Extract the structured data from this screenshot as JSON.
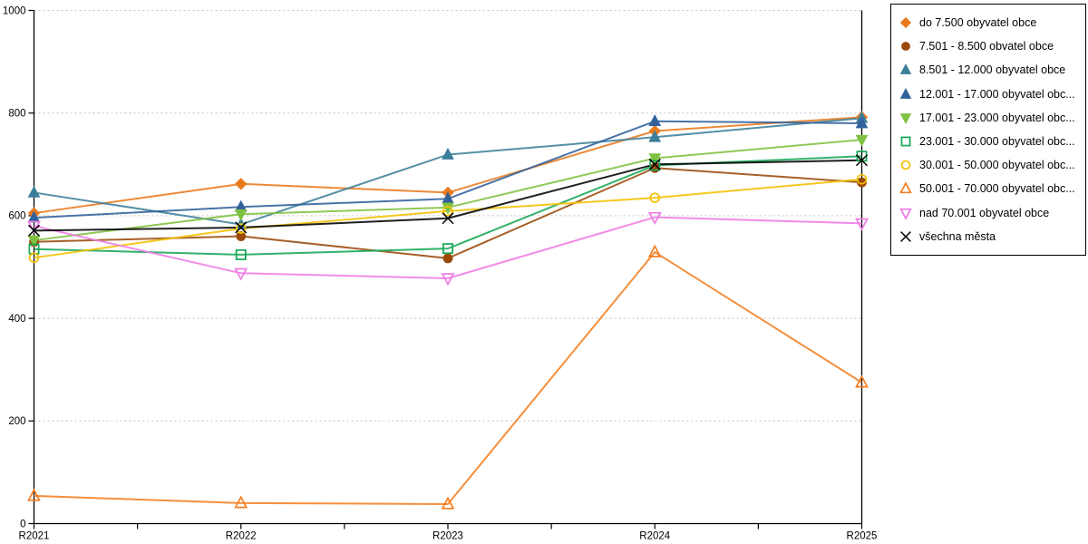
{
  "chart_data": {
    "type": "line",
    "title": "",
    "xlabel": "",
    "ylabel": "",
    "categories": [
      "R2021",
      "R2022",
      "R2023",
      "R2024",
      "R2025"
    ],
    "ylim": [
      0,
      1000
    ],
    "yticks": [
      0,
      200,
      400,
      600,
      800,
      1000
    ],
    "grid": "horizontal-dashed",
    "grid_color": "#c3c3c3",
    "axis_color": "#000000",
    "legend_position": "right",
    "series": [
      {
        "name": "do 7.500 obyvatel obce",
        "color": "#E87A1E",
        "marker": "diamond",
        "filled": true,
        "values": [
          605,
          662,
          645,
          765,
          792
        ]
      },
      {
        "name": "7.501 - 8.500 obvatel obce",
        "color": "#9B4A0B",
        "marker": "circle",
        "filled": true,
        "values": [
          549,
          560,
          517,
          693,
          665
        ]
      },
      {
        "name": "8.501 - 12.000 obyvatel obce",
        "color": "#3C7F9B",
        "marker": "triangle-up",
        "filled": true,
        "values": [
          645,
          583,
          719,
          753,
          790
        ]
      },
      {
        "name": "12.001 - 17.000 obyvatel obc...",
        "color": "#31609B",
        "marker": "triangle-up",
        "filled": true,
        "values": [
          596,
          617,
          633,
          784,
          780
        ]
      },
      {
        "name": "17.001 - 23.000 obyvatel obc...",
        "color": "#7FC241",
        "marker": "triangle-down",
        "filled": true,
        "values": [
          552,
          603,
          616,
          712,
          748
        ]
      },
      {
        "name": "23.001 - 30.000 obyvatel obc...",
        "color": "#16A757",
        "marker": "square",
        "filled": false,
        "values": [
          535,
          524,
          536,
          698,
          716
        ]
      },
      {
        "name": "30.001 - 50.000 obyvatel obc...",
        "color": "#F3C000",
        "marker": "circle",
        "filled": false,
        "values": [
          518,
          575,
          609,
          635,
          671
        ]
      },
      {
        "name": "50.001 - 70.000 obyvatel obc...",
        "color": "#F57E20",
        "marker": "triangle-up",
        "filled": false,
        "values": [
          54,
          40,
          38,
          529,
          275
        ]
      },
      {
        "name": "nad 70.001 obyvatel obce",
        "color": "#EF7BE5",
        "marker": "triangle-down",
        "filled": false,
        "values": [
          580,
          488,
          478,
          597,
          585
        ]
      },
      {
        "name": "všechna města",
        "color": "#000000",
        "marker": "x",
        "filled": false,
        "values": [
          571,
          577,
          595,
          700,
          708
        ]
      }
    ]
  }
}
